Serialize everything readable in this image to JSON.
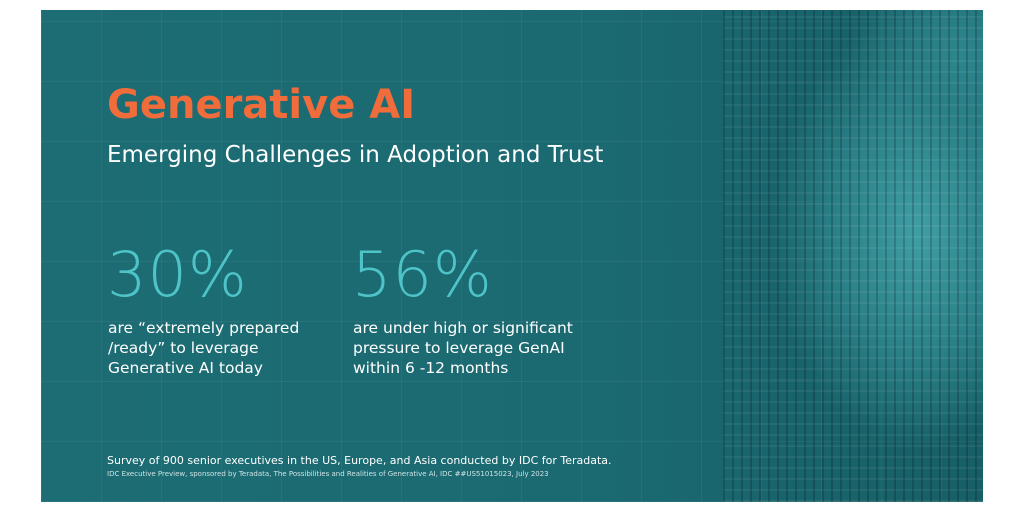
{
  "header": {
    "title": "Generative AI",
    "subtitle": "Emerging Challenges in Adoption and Trust"
  },
  "stats": [
    {
      "value": "30%",
      "lines": [
        "are “extremely prepared",
        "/ready” to leverage",
        "Generative AI today"
      ]
    },
    {
      "value": "56%",
      "lines": [
        "are under high or significant",
        "pressure to leverage GenAI",
        "within 6 -12 months"
      ]
    }
  ],
  "footer": {
    "survey": "Survey of 900 senior executives in the US, Europe, and Asia conducted by IDC for Teradata.",
    "source": "IDC Executive Preview, sponsored by Teradata, The Possibilities and Realities of Generative AI, IDC ##US51015023, July 2023"
  }
}
